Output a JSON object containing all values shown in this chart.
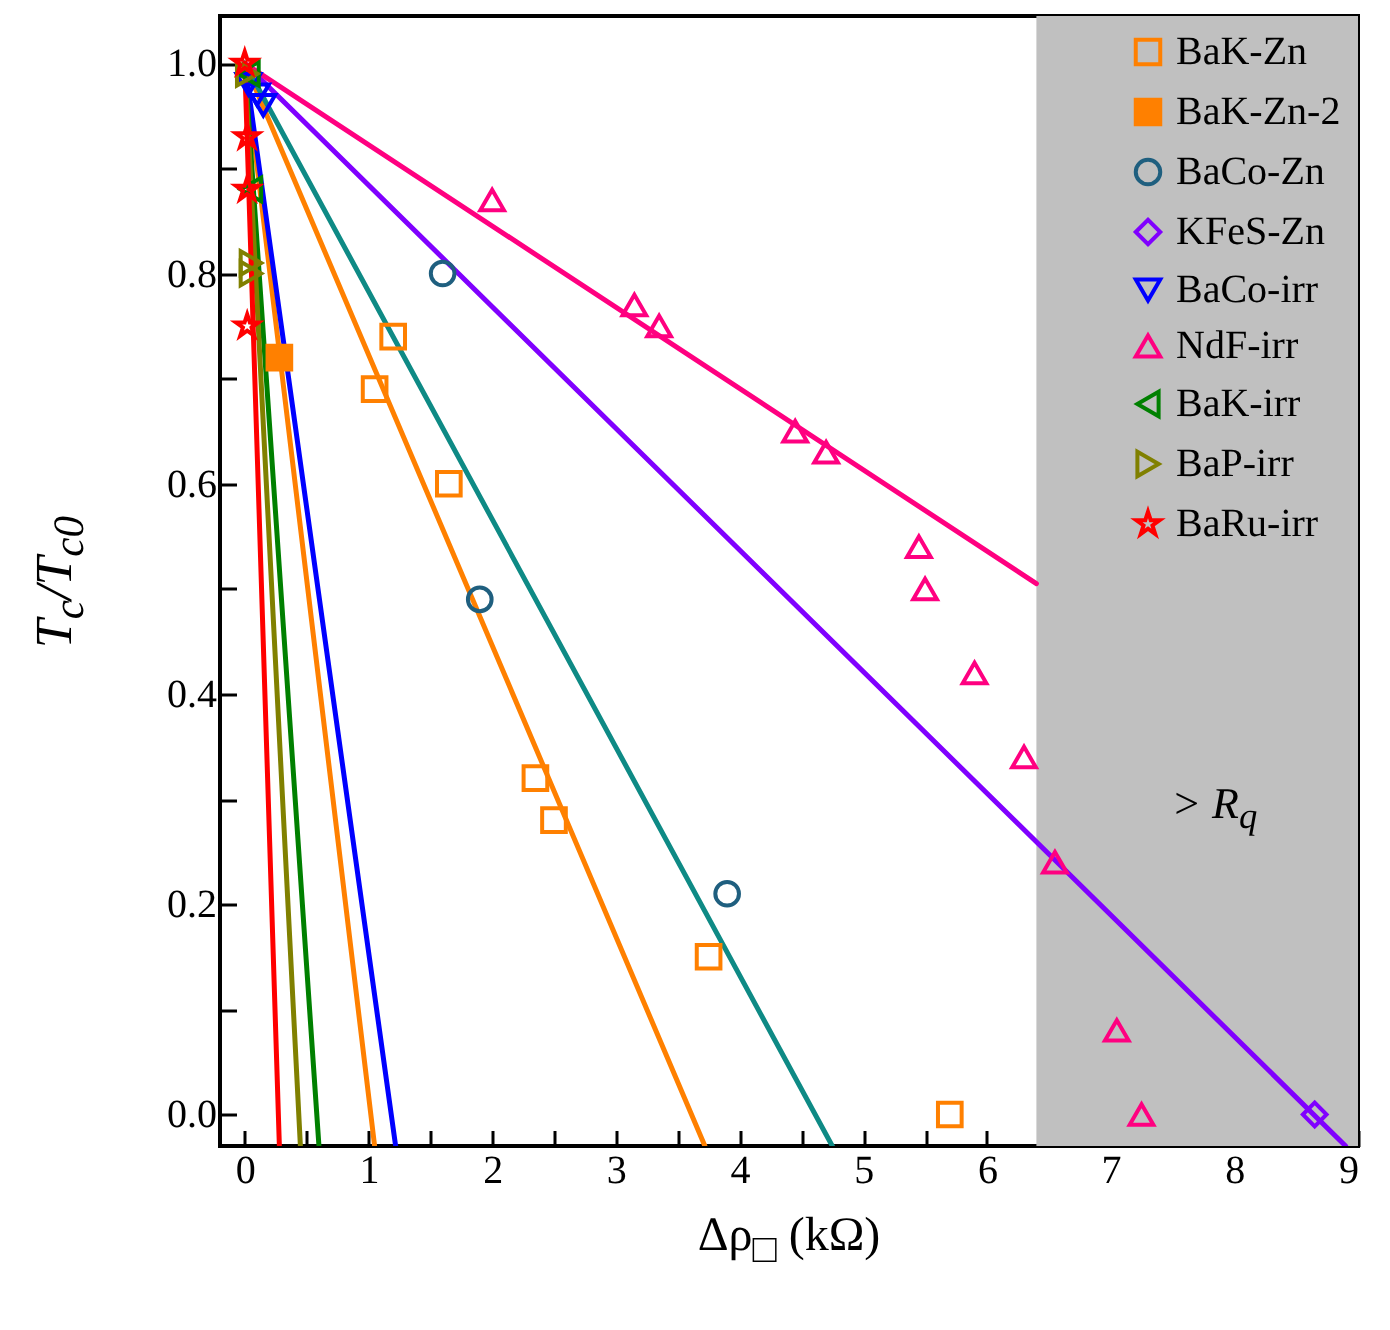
{
  "chart_data": {
    "type": "scatter",
    "xlabel": "Δρ$_{□}$ (kΩ)",
    "ylabel": "T$_{c}$/T$_{c0}$",
    "xlim": [
      -0.2,
      9.0
    ],
    "ylim": [
      -0.03,
      1.045
    ],
    "xticks": [
      0,
      {
        "value": 0.5,
        "label": null
      },
      1,
      {
        "value": 1.5,
        "label": null
      },
      2,
      {
        "value": 2.5,
        "label": null
      },
      3,
      {
        "value": 3.5,
        "label": null
      },
      4,
      {
        "value": 4.5,
        "label": null
      },
      5,
      {
        "value": 5.5,
        "label": null
      },
      6,
      {
        "value": 6.5,
        "label": null
      },
      7,
      {
        "value": 7.5,
        "label": null
      },
      8,
      {
        "value": 8.5,
        "label": null
      },
      9
    ],
    "yticks": [
      {
        "value": 0,
        "label": "0.0"
      },
      {
        "value": 0.1,
        "label": null
      },
      {
        "value": 0.2,
        "label": "0.2"
      },
      {
        "value": 0.3,
        "label": null
      },
      {
        "value": 0.4,
        "label": "0.4"
      },
      {
        "value": 0.5,
        "label": null
      },
      {
        "value": 0.6,
        "label": "0.6"
      },
      {
        "value": 0.7,
        "label": null
      },
      {
        "value": 0.8,
        "label": "0.8"
      },
      {
        "value": 0.9,
        "label": null
      },
      {
        "value": 1.0,
        "label": "1.0"
      }
    ],
    "grid": false,
    "legend": "top right",
    "bands": [
      {
        "axis": "x",
        "from": 6.4,
        "to": 9.0,
        "label": "> R$_{q}$",
        "color": "#c0c0c0"
      }
    ],
    "series": [
      {
        "type": "line",
        "color": "#ff8000",
        "x": [
          0,
          3.72
        ],
        "values": [
          1.0,
          -0.03
        ]
      },
      {
        "type": "line",
        "color": "#ff8000",
        "x": [
          0,
          1.05
        ],
        "values": [
          1.0,
          -0.03
        ]
      },
      {
        "type": "line",
        "color": "#0e8a85",
        "x": [
          0,
          4.75
        ],
        "values": [
          1.0,
          -0.03
        ]
      },
      {
        "type": "line",
        "color": "#8000ff",
        "x": [
          0,
          8.9
        ],
        "values": [
          1.0,
          -0.03
        ]
      },
      {
        "type": "line",
        "color": "#0000ff",
        "x": [
          0,
          1.22
        ],
        "values": [
          1.0,
          -0.03
        ]
      },
      {
        "type": "line",
        "color": "#ff0080",
        "x": [
          0,
          6.4
        ],
        "values": [
          1.0,
          0.505
        ]
      },
      {
        "type": "line",
        "color": "#008000",
        "x": [
          0,
          0.6
        ],
        "values": [
          1.0,
          -0.03
        ]
      },
      {
        "type": "line",
        "color": "#808000",
        "x": [
          0,
          0.45
        ],
        "values": [
          1.0,
          -0.03
        ]
      },
      {
        "type": "line",
        "color": "#ff0000",
        "x": [
          0,
          0.28
        ],
        "values": [
          1.0,
          -0.03
        ]
      },
      {
        "name": "BaK-Zn",
        "color": "#ff8000",
        "marker": "square",
        "x": [
          1.05,
          1.2,
          1.65,
          2.35,
          2.5,
          3.75,
          5.7
        ],
        "values": [
          0.69,
          0.74,
          0.6,
          0.32,
          0.28,
          0.15,
          0.0
        ]
      },
      {
        "name": "BaK-Zn-2",
        "color": "#ff8000",
        "marker": "square-filled",
        "x": [
          0.28
        ],
        "values": [
          0.72
        ]
      },
      {
        "name": "BaCo-Zn",
        "color": "#1f5f7f",
        "marker": "circle",
        "x": [
          1.6,
          1.9,
          3.9
        ],
        "values": [
          0.8,
          0.49,
          0.21
        ]
      },
      {
        "name": "KFeS-Zn",
        "color": "#8000ff",
        "marker": "diamond",
        "x": [
          8.65
        ],
        "values": [
          0.0
        ]
      },
      {
        "name": "BaCo-irr",
        "color": "#0000ff",
        "marker": "triangle-down",
        "x": [
          0.03,
          0.1,
          0.15
        ],
        "values": [
          0.98,
          0.97,
          0.96
        ]
      },
      {
        "name": "NdF-irr",
        "color": "#ff0080",
        "marker": "triangle",
        "x": [
          2.0,
          3.15,
          3.35,
          4.45,
          4.7,
          5.45,
          5.5,
          5.9,
          6.3,
          6.55,
          7.05,
          7.25
        ],
        "values": [
          0.87,
          0.77,
          0.75,
          0.65,
          0.63,
          0.54,
          0.5,
          0.42,
          0.34,
          0.24,
          0.08,
          0.0
        ]
      },
      {
        "name": "BaK-irr",
        "color": "#008000",
        "marker": "triangle-left",
        "x": [
          0.03,
          0.05
        ],
        "values": [
          0.99,
          0.88
        ]
      },
      {
        "name": "BaP-irr",
        "color": "#808000",
        "marker": "triangle-right",
        "x": [
          0.02,
          0.05,
          0.05
        ],
        "values": [
          0.99,
          0.81,
          0.8
        ]
      },
      {
        "name": "BaRu-irr",
        "color": "#ff0000",
        "marker": "star",
        "x": [
          0.0,
          0.02,
          0.02,
          0.02
        ],
        "values": [
          1.0,
          0.93,
          0.88,
          0.75
        ]
      }
    ]
  }
}
